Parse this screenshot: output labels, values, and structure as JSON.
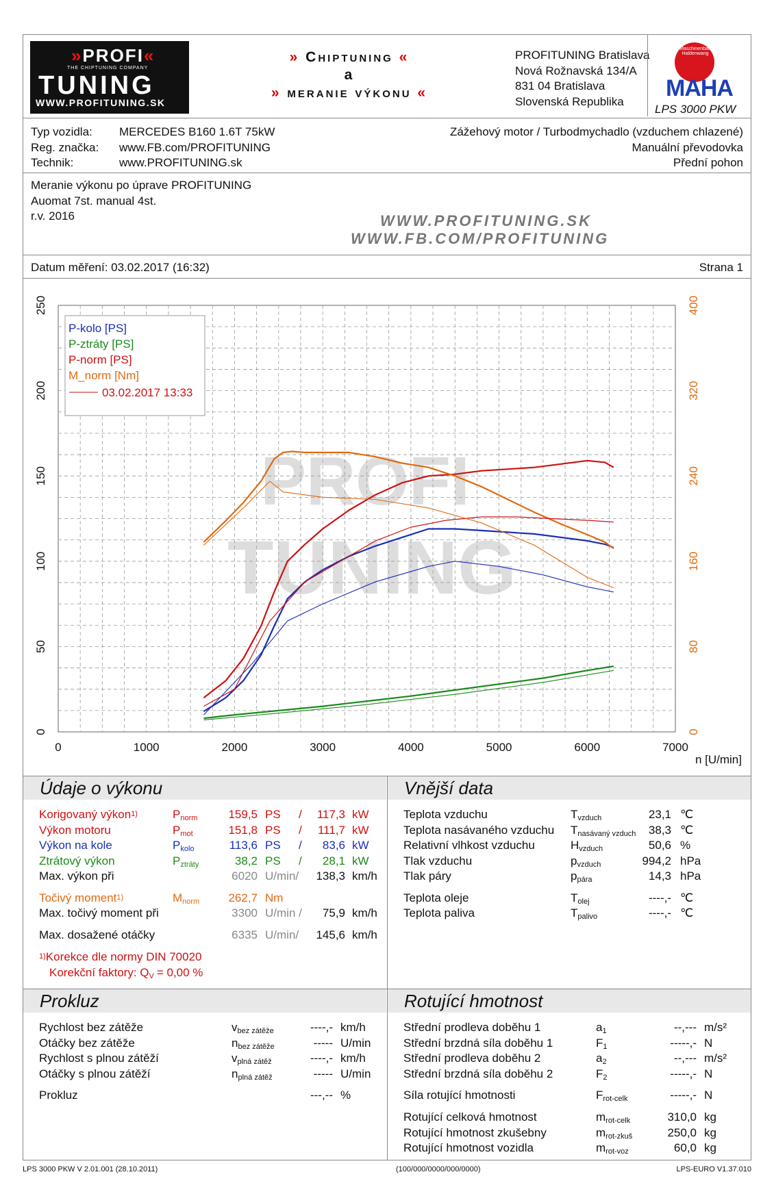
{
  "header": {
    "logo_top": "PROFI",
    "logo_tag": "THE CHIPTUNING COMPANY",
    "logo_main": "TUNING",
    "logo_url": "WWW.PROFITUNING.SK",
    "title1": "Chiptuning",
    "title_and": "a",
    "title2": "meranie výkonu",
    "address": [
      "PROFITUNING Bratislava",
      "Nová Rožnavská 134/A",
      "831 04 Bratislava",
      "Slovenská Republika"
    ],
    "maha_ring": "Maschinenbau Haldenwang",
    "maha_text": "MAHA",
    "lps_model": "LPS 3000 PKW"
  },
  "vehicle": {
    "labels": [
      "Typ vozidla:",
      "Reg. značka:",
      "Technik:"
    ],
    "values": [
      "MERCEDES B160 1.6T 75kW",
      "www.FB.com/PROFITUNING",
      "www.PROFITUNING.sk"
    ],
    "right": [
      "Zážehový motor / Turbodmychadlo (vzduchem chlazené)",
      "Manuální převodovka",
      "Přední pohon"
    ]
  },
  "notes": {
    "lines": [
      "Meranie výkonu po úprave PROFITUNING",
      "Auomat 7st. manual 4st.",
      "r.v. 2016"
    ],
    "wm1": "WWW.PROFITUNING.SK",
    "wm2": "WWW.FB.COM/PROFITUNING"
  },
  "date_line": {
    "left": "Datum měření: 03.02.2017 (16:32)",
    "right": "Strana 1"
  },
  "chart_data": {
    "type": "line",
    "xlabel": "n [U/min]",
    "xlim": [
      0,
      7000
    ],
    "ylim": [
      0,
      250
    ],
    "y2lim": [
      0,
      400
    ],
    "xticks": [
      0,
      1000,
      2000,
      3000,
      4000,
      5000,
      6000,
      7000
    ],
    "yticks": [
      0,
      50,
      100,
      150,
      200,
      250
    ],
    "y2ticks": [
      0,
      80,
      160,
      240,
      320,
      400
    ],
    "grid": true,
    "legend_position": "top-left",
    "legend": [
      "P-kolo [PS]",
      "P-ztráty [PS]",
      "P-norm [PS]",
      "M_norm [Nm]",
      "03.02.2017 13:33"
    ],
    "series": [
      {
        "name": "P-kolo [PS]",
        "color": "#1a2fb5",
        "axis": "left",
        "x": [
          1650,
          1900,
          2100,
          2300,
          2450,
          2600,
          2800,
          3000,
          3300,
          3600,
          3900,
          4200,
          4500,
          4800,
          5100,
          5400,
          5700,
          6000,
          6200,
          6300
        ],
        "values": [
          12,
          20,
          30,
          45,
          62,
          78,
          88,
          95,
          103,
          109,
          114,
          119,
          119,
          118,
          117,
          116,
          114,
          112,
          110,
          108
        ]
      },
      {
        "name": "P-ztráty [PS]",
        "color": "#1a8a1a",
        "axis": "left",
        "x": [
          1650,
          2000,
          2500,
          3000,
          3500,
          4000,
          4500,
          5000,
          5500,
          6000,
          6300
        ],
        "values": [
          8,
          10,
          12.5,
          15,
          18,
          21,
          24.5,
          28,
          31.5,
          36,
          38.5
        ]
      },
      {
        "name": "P-norm [PS]",
        "color": "#d01010",
        "axis": "left",
        "x": [
          1650,
          1900,
          2100,
          2300,
          2450,
          2600,
          2800,
          3000,
          3300,
          3600,
          3900,
          4200,
          4500,
          4800,
          5100,
          5400,
          5700,
          6000,
          6200,
          6300
        ],
        "values": [
          20,
          30,
          43,
          62,
          82,
          100,
          110,
          119,
          130,
          139,
          146,
          150,
          151,
          153,
          154,
          155,
          157,
          159,
          158,
          155
        ]
      },
      {
        "name": "M_norm [Nm]",
        "color": "#e06a10",
        "axis": "right",
        "x": [
          1650,
          1900,
          2100,
          2300,
          2450,
          2550,
          2650,
          2800,
          3000,
          3300,
          3600,
          3900,
          4200,
          4500,
          4800,
          5100,
          5400,
          5700,
          6000,
          6200,
          6300
        ],
        "values": [
          178,
          198,
          215,
          235,
          256,
          262,
          263,
          262,
          262,
          262,
          258,
          252,
          248,
          240,
          230,
          218,
          206,
          195,
          185,
          178,
          172
        ]
      },
      {
        "name": "03.02.2017 13:33",
        "color": "#d01010",
        "axis": "left",
        "ref": true,
        "x": [
          1650,
          2000,
          2400,
          2800,
          3200,
          3600,
          4000,
          4400,
          4800,
          5200,
          5600,
          6000,
          6300
        ],
        "values": [
          15,
          25,
          65,
          88,
          100,
          112,
          120,
          124,
          126,
          126,
          125,
          124,
          123
        ]
      }
    ]
  },
  "vykon": {
    "title": "Údaje o výkonu",
    "rows": [
      {
        "label": "Korigovaný výkon",
        "sup": "1)",
        "sym": "P",
        "sub": "norm",
        "v1": "159,5",
        "u1": "PS",
        "sep": "/",
        "v2": "117,3",
        "u2": "kW"
      },
      {
        "label": "Výkon motoru",
        "sup": "",
        "sym": "P",
        "sub": "mot",
        "v1": "151,8",
        "u1": "PS",
        "sep": "/",
        "v2": "111,7",
        "u2": "kW"
      },
      {
        "label": "Výkon na kole",
        "sup": "",
        "sym": "P",
        "sub": "kolo",
        "v1": "113,6",
        "u1": "PS",
        "sep": "/",
        "v2": "83,6",
        "u2": "kW"
      },
      {
        "label": "Ztrátový výkon",
        "sup": "",
        "sym": "P",
        "sub": "ztráty",
        "v1": "38,2",
        "u1": "PS",
        "sep": "/",
        "v2": "28,1",
        "u2": "kW"
      }
    ],
    "maxp": {
      "label": "Max. výkon při",
      "rpm": "6020",
      "unit": "U/min/",
      "speed": "138,3",
      "speed_unit": "km/h"
    },
    "torque": {
      "label": "Točivý moment",
      "sup": "1)",
      "sym": "M",
      "sub": "norm",
      "value": "262,7",
      "unit": "Nm"
    },
    "maxt": {
      "label": "Max. točivý moment při",
      "rpm": "3300",
      "unit": "U/min /",
      "speed": "75,9",
      "speed_unit": "km/h"
    },
    "maxrpm": {
      "label": "Max. dosažené otáčky",
      "rpm": "6335",
      "unit": "U/min/",
      "speed": "145,6",
      "speed_unit": "km/h"
    },
    "note1": "Korekce dle normy DIN 70020",
    "note1_sup": "1)",
    "note2_label": "Korekční faktory: Q",
    "note2_sub": "V",
    "note2_value": "= 0,00 %"
  },
  "vnejsi": {
    "title": "Vnější data",
    "rows": [
      {
        "label": "Teplota vzduchu",
        "sym": "T",
        "sub": "vzduch",
        "value": "23,1",
        "unit": "℃"
      },
      {
        "label": "Teplota nasávaného vzduchu",
        "sym": "T",
        "sub": "nasávaný vzduch",
        "value": "38,3",
        "unit": "℃"
      },
      {
        "label": "Relativní vlhkost vzduchu",
        "sym": "H",
        "sub": "vzduch",
        "value": "50,6",
        "unit": "%"
      },
      {
        "label": "Tlak vzduchu",
        "sym": "p",
        "sub": "vzduch",
        "value": "994,2",
        "unit": "hPa"
      },
      {
        "label": "Tlak páry",
        "sym": "p",
        "sub": "pára",
        "value": "14,3",
        "unit": "hPa"
      },
      {
        "label": "Teplota oleje",
        "sym": "T",
        "sub": "olej",
        "value": "----,-",
        "unit": "℃"
      },
      {
        "label": "Teplota paliva",
        "sym": "T",
        "sub": "palivo",
        "value": "----,-",
        "unit": "℃"
      }
    ]
  },
  "prokluz": {
    "title": "Prokluz",
    "rows": [
      {
        "label": "Rychlost bez zátěže",
        "sym": "v",
        "sub": "bez zátěže",
        "value": "----,-",
        "unit": "km/h"
      },
      {
        "label": "Otáčky bez zátěže",
        "sym": "n",
        "sub": "bez zátěže",
        "value": "-----",
        "unit": "U/min"
      },
      {
        "label": "Rychlost s plnou zátěží",
        "sym": "v",
        "sub": "plná zátěž",
        "value": "----,-",
        "unit": "km/h"
      },
      {
        "label": "Otáčky s plnou zátěží",
        "sym": "n",
        "sub": "plná zátěž",
        "value": "-----",
        "unit": "U/min"
      },
      {
        "label": "Prokluz",
        "sym": "",
        "sub": "",
        "value": "---,--",
        "unit": "%"
      }
    ]
  },
  "rotujici": {
    "title": "Rotující hmotnost",
    "rows": [
      {
        "label": "Střední prodleva doběhu 1",
        "sym": "a",
        "sub": "1",
        "value": "--,---",
        "unit": "m/s²"
      },
      {
        "label": "Střední brzdná síla doběhu 1",
        "sym": "F",
        "sub": "1",
        "value": "-----,-",
        "unit": "N"
      },
      {
        "label": "Střední prodleva doběhu 2",
        "sym": "a",
        "sub": "2",
        "value": "--,---",
        "unit": "m/s²"
      },
      {
        "label": "Střední brzdná síla doběhu 2",
        "sym": "F",
        "sub": "2",
        "value": "-----,-",
        "unit": "N"
      },
      {
        "label": "Síla rotující hmotnosti",
        "sym": "F",
        "sub": "rot-celk",
        "value": "-----,-",
        "unit": "N"
      },
      {
        "label": "Rotující celková hmotnost",
        "sym": "m",
        "sub": "rot-celk",
        "value": "310,0",
        "unit": "kg"
      },
      {
        "label": "Rotující hmotnost zkušebny",
        "sym": "m",
        "sub": "rot-zkuš",
        "value": "250,0",
        "unit": "kg"
      },
      {
        "label": "Rotující hmotnost vozidla",
        "sym": "m",
        "sub": "rot-voz",
        "value": "60,0",
        "unit": "kg"
      }
    ]
  },
  "footer": {
    "left": "LPS 3000 PKW V 2.01.001 (28.10.2011)",
    "center": "(100/000/0000/000/0000)",
    "right": "LPS-EURO V1.37.010"
  }
}
